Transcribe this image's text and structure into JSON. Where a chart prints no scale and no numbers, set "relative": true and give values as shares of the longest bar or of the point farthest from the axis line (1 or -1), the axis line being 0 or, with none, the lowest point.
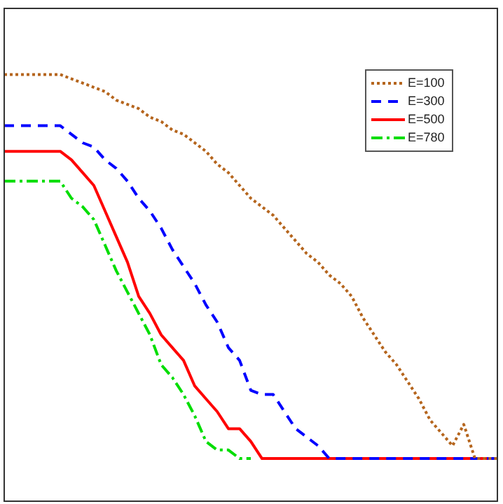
{
  "chart_data": {
    "type": "line",
    "relative": true,
    "legend": "top right",
    "marker": "none",
    "categories": [
      null,
      null,
      null,
      null,
      null,
      null,
      null,
      null,
      null,
      null,
      null,
      null,
      null,
      null,
      null,
      null,
      null,
      null,
      null,
      null,
      null,
      null,
      null,
      null,
      null,
      null,
      null,
      null,
      null,
      null,
      null,
      null,
      null,
      null,
      null,
      null,
      null,
      null,
      null,
      null,
      null,
      null,
      null,
      null,
      null
    ],
    "series": [
      {
        "name": "E=100",
        "color": "#b5651d",
        "line_style": "dotted",
        "values": [
          1,
          1,
          1,
          1,
          1,
          1,
          0.99,
          0.98,
          0.97,
          0.96,
          0.94,
          0.93,
          0.92,
          0.9,
          0.89,
          0.87,
          0.86,
          0.84,
          0.82,
          0.79,
          0.77,
          0.74,
          0.71,
          0.69,
          0.67,
          0.64,
          0.61,
          0.58,
          0.56,
          0.53,
          0.51,
          0.48,
          0.43,
          0.39,
          0.35,
          0.32,
          0.28,
          0.24,
          0.19,
          0.16,
          0.13,
          0.18,
          0.1,
          0.1,
          0.1
        ]
      },
      {
        "name": "E=300",
        "color": "#0000ff",
        "line_style": "dashed",
        "values": [
          0.88,
          0.88,
          0.88,
          0.88,
          0.88,
          0.88,
          0.86,
          0.84,
          0.83,
          0.8,
          0.78,
          0.75,
          0.71,
          0.68,
          0.64,
          0.59,
          0.55,
          0.51,
          0.46,
          0.42,
          0.36,
          0.33,
          0.26,
          0.25,
          0.25,
          0.21,
          0.17,
          0.15,
          0.13,
          0.1,
          0.1,
          0.1,
          0.1,
          0.1,
          0.1,
          0.1,
          0.1,
          0.1,
          0.1,
          0.1,
          0.1,
          0.1,
          0.1,
          0.1,
          0.1
        ]
      },
      {
        "name": "E=500",
        "color": "#ff0000",
        "line_style": "solid",
        "values": [
          0.82,
          0.82,
          0.82,
          0.82,
          0.82,
          0.82,
          0.8,
          0.77,
          0.74,
          0.68,
          0.62,
          0.56,
          0.48,
          0.44,
          0.39,
          0.36,
          0.33,
          0.27,
          0.24,
          0.21,
          0.17,
          0.17,
          0.14,
          0.1,
          0.1,
          0.1,
          0.1,
          0.1,
          0.1,
          0.1,
          0.1,
          0.1,
          0.1,
          0.1,
          0.1,
          0.1,
          0.1,
          0.1,
          0.1,
          0.1,
          0.1,
          0.1,
          0.1,
          0.1,
          0.1
        ]
      },
      {
        "name": "E=780",
        "color": "#00dd00",
        "line_style": "dashdot",
        "values": [
          0.75,
          0.75,
          0.75,
          0.75,
          0.75,
          0.75,
          0.71,
          0.69,
          0.66,
          0.6,
          0.54,
          0.49,
          0.44,
          0.39,
          0.32,
          0.29,
          0.25,
          0.2,
          0.14,
          0.12,
          0.12,
          0.1,
          0.1,
          null,
          null,
          null,
          null,
          null,
          null,
          null,
          null,
          null,
          null,
          null,
          null,
          null,
          null,
          null,
          null,
          null,
          null,
          null,
          null,
          null,
          null
        ]
      }
    ]
  }
}
